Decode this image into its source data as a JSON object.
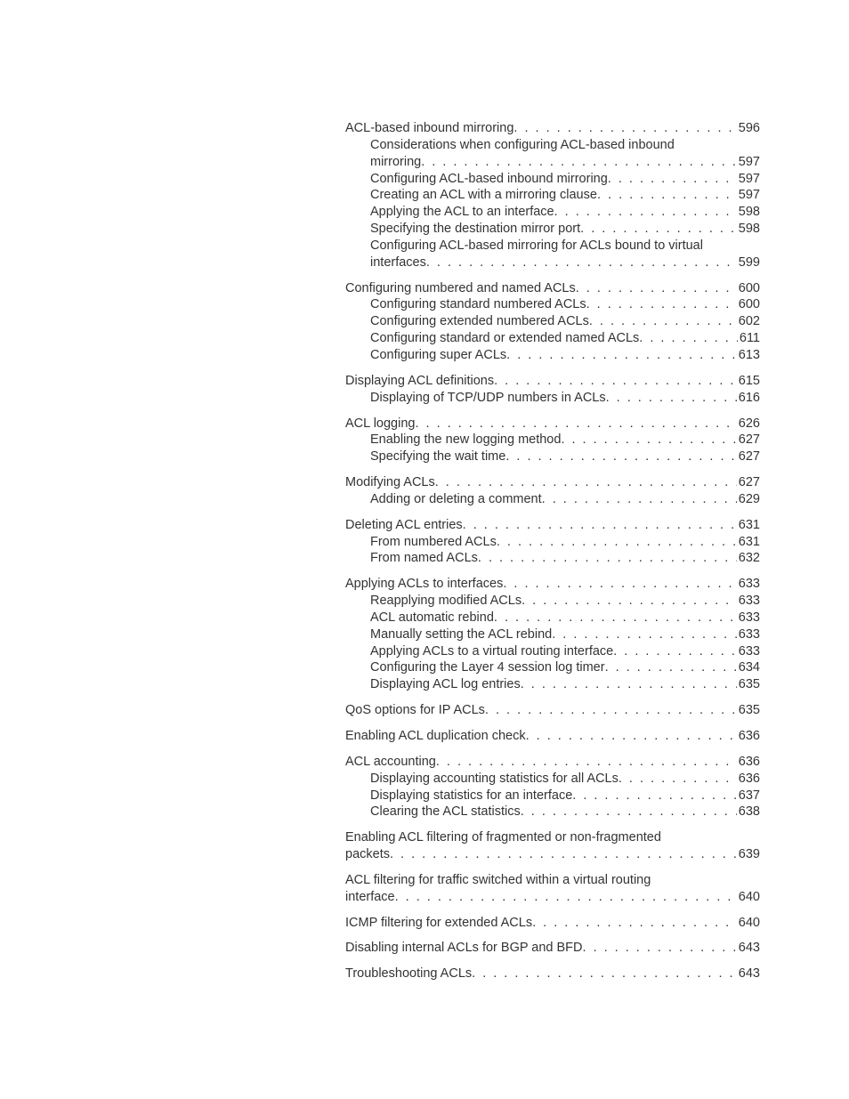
{
  "colors": {
    "text": "#333333",
    "background": "#ffffff"
  },
  "typography": {
    "font_family": "Arial, Helvetica, sans-serif",
    "font_size_pt": 11,
    "line_height": 1.3
  },
  "toc": [
    {
      "entries": [
        {
          "level": 1,
          "title": "ACL-based inbound mirroring",
          "page": "596"
        },
        {
          "level": 2,
          "wrap_title": "Considerations when configuring ACL-based inbound",
          "wrap_cont": "mirroring",
          "page": "597"
        },
        {
          "level": 2,
          "title": "Configuring ACL-based inbound mirroring",
          "page": "597"
        },
        {
          "level": 2,
          "title": "Creating an ACL with a mirroring clause",
          "page": "597"
        },
        {
          "level": 2,
          "title": "Applying the ACL to an interface",
          "page": "598"
        },
        {
          "level": 2,
          "title": "Specifying the destination mirror port",
          "page": "598"
        },
        {
          "level": 2,
          "wrap_title": "Configuring ACL-based mirroring for ACLs bound to virtual",
          "wrap_cont": "interfaces",
          "page": "599"
        }
      ]
    },
    {
      "entries": [
        {
          "level": 1,
          "title": "Configuring numbered and named ACLs",
          "page": "600"
        },
        {
          "level": 2,
          "title": "Configuring standard numbered ACLs",
          "page": "600"
        },
        {
          "level": 2,
          "title": "Configuring extended numbered ACLs",
          "page": "602"
        },
        {
          "level": 2,
          "title": "Configuring standard or extended named ACLs",
          "page": "611"
        },
        {
          "level": 2,
          "title": "Configuring super ACLs",
          "page": "613"
        }
      ]
    },
    {
      "entries": [
        {
          "level": 1,
          "title": "Displaying ACL definitions",
          "page": "615"
        },
        {
          "level": 2,
          "title": "Displaying of TCP/UDP numbers in ACLs",
          "page": "616"
        }
      ]
    },
    {
      "entries": [
        {
          "level": 1,
          "title": "ACL logging",
          "page": "626"
        },
        {
          "level": 2,
          "title": "Enabling the new logging method",
          "page": "627"
        },
        {
          "level": 2,
          "title": "Specifying the wait time",
          "page": "627"
        }
      ]
    },
    {
      "entries": [
        {
          "level": 1,
          "title": "Modifying ACLs",
          "page": "627"
        },
        {
          "level": 2,
          "title": "Adding or deleting a comment",
          "page": "629"
        }
      ]
    },
    {
      "entries": [
        {
          "level": 1,
          "title": "Deleting ACL entries",
          "page": "631"
        },
        {
          "level": 2,
          "title": "From numbered ACLs",
          "page": "631"
        },
        {
          "level": 2,
          "title": "From named ACLs",
          "page": "632"
        }
      ]
    },
    {
      "entries": [
        {
          "level": 1,
          "title": "Applying ACLs to interfaces",
          "page": "633"
        },
        {
          "level": 2,
          "title": "Reapplying modified ACLs",
          "page": "633"
        },
        {
          "level": 2,
          "title": "ACL automatic rebind",
          "page": "633"
        },
        {
          "level": 2,
          "title": "Manually setting the ACL rebind",
          "page": "633"
        },
        {
          "level": 2,
          "title": "Applying ACLs to a virtual routing interface",
          "page": "633"
        },
        {
          "level": 2,
          "title": "Configuring the Layer 4 session log timer",
          "page": "634"
        },
        {
          "level": 2,
          "title": "Displaying ACL log entries",
          "page": "635"
        }
      ]
    },
    {
      "entries": [
        {
          "level": 1,
          "title": "QoS options for IP ACLs",
          "page": "635"
        }
      ]
    },
    {
      "entries": [
        {
          "level": 1,
          "title": "Enabling ACL duplication check",
          "page": "636"
        }
      ]
    },
    {
      "entries": [
        {
          "level": 1,
          "title": "ACL accounting",
          "page": "636"
        },
        {
          "level": 2,
          "title": "Displaying accounting statistics for all ACLs",
          "page": "636"
        },
        {
          "level": 2,
          "title": "Displaying statistics for an interface",
          "page": "637"
        },
        {
          "level": 2,
          "title": "Clearing the ACL statistics",
          "page": "638"
        }
      ]
    },
    {
      "entries": [
        {
          "level": 1,
          "wrap_title": "Enabling ACL filtering of fragmented or non-fragmented",
          "wrap_cont": "packets",
          "page": "639"
        }
      ]
    },
    {
      "entries": [
        {
          "level": 1,
          "wrap_title": "ACL filtering for traffic switched within a virtual routing",
          "wrap_cont": "interface",
          "page": "640"
        }
      ]
    },
    {
      "entries": [
        {
          "level": 1,
          "title": "ICMP filtering for extended ACLs",
          "page": "640"
        }
      ]
    },
    {
      "entries": [
        {
          "level": 1,
          "title": "Disabling internal ACLs for BGP and BFD",
          "page": "643"
        }
      ]
    },
    {
      "entries": [
        {
          "level": 1,
          "title": "Troubleshooting ACLs",
          "page": "643"
        }
      ]
    }
  ]
}
